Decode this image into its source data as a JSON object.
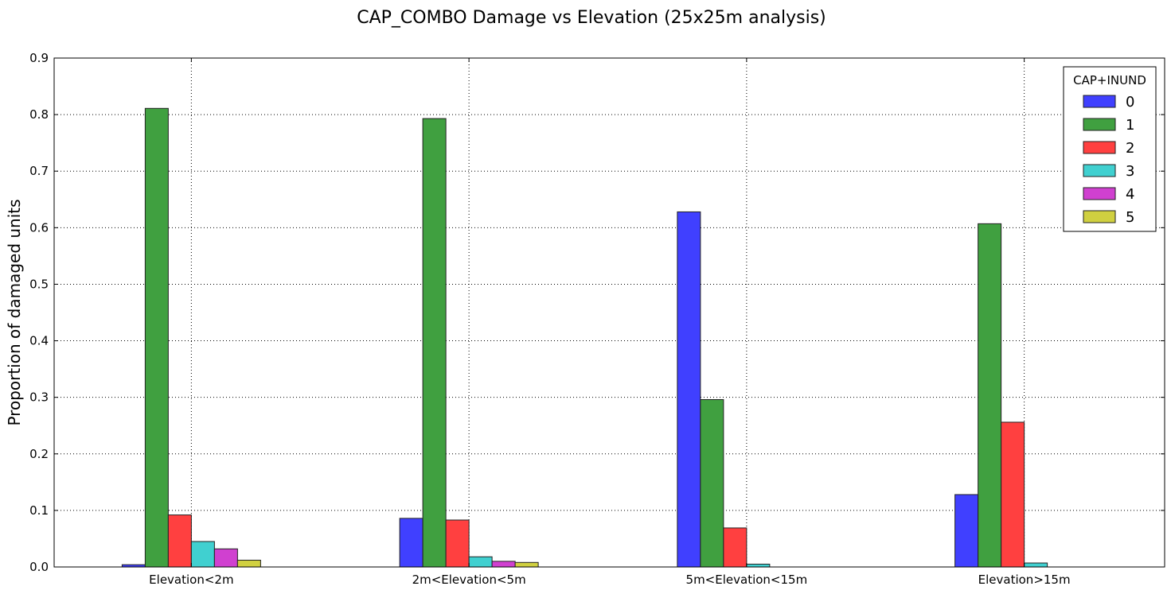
{
  "chart_data": {
    "type": "bar",
    "title": "CAP_COMBO Damage vs Elevation (25x25m analysis)",
    "xlabel": "",
    "ylabel": "Proportion of damaged units",
    "ylim": [
      0,
      0.9
    ],
    "yticks": [
      "0.0",
      "0.1",
      "0.2",
      "0.3",
      "0.4",
      "0.5",
      "0.6",
      "0.7",
      "0.8",
      "0.9"
    ],
    "grid": true,
    "legend": {
      "title": "CAP+INUND",
      "placement": "top-right"
    },
    "categories": [
      "Elevation<2m",
      "2m<Elevation<5m",
      "5m<Elevation<15m",
      "Elevation>15m"
    ],
    "series": [
      {
        "name": "0",
        "color": "#4040ff",
        "values": [
          0.004,
          0.086,
          0.628,
          0.128
        ]
      },
      {
        "name": "1",
        "color": "#40a040",
        "values": [
          0.811,
          0.793,
          0.296,
          0.607
        ]
      },
      {
        "name": "2",
        "color": "#ff4040",
        "values": [
          0.092,
          0.083,
          0.069,
          0.256
        ]
      },
      {
        "name": "3",
        "color": "#40d0d0",
        "values": [
          0.045,
          0.018,
          0.005,
          0.007
        ]
      },
      {
        "name": "4",
        "color": "#d040d0",
        "values": [
          0.032,
          0.01,
          0.0,
          0.0
        ]
      },
      {
        "name": "5",
        "color": "#d0d040",
        "values": [
          0.012,
          0.008,
          0.0,
          0.0
        ]
      }
    ]
  }
}
